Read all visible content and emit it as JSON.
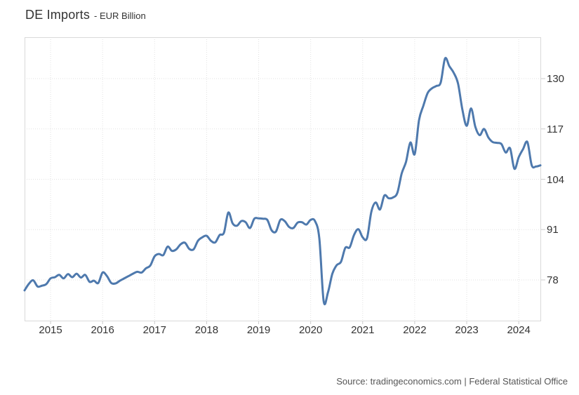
{
  "header": {
    "title": "DE Imports",
    "subtitle": "- EUR Billion"
  },
  "footer": {
    "source": "Source: tradingeconomics.com | Federal Statistical Office"
  },
  "chart_data": {
    "type": "line",
    "title": "DE Imports",
    "unit": "EUR Billion",
    "frequency": "monthly",
    "start": "2014-07",
    "end": "2024-06",
    "values": [
      75.3,
      77.0,
      77.9,
      76.3,
      76.5,
      76.9,
      78.4,
      78.7,
      79.3,
      78.4,
      79.5,
      78.7,
      79.6,
      78.6,
      79.3,
      77.5,
      77.8,
      77.2,
      79.9,
      79.0,
      77.2,
      77.1,
      77.8,
      78.4,
      79.0,
      79.6,
      80.1,
      79.9,
      81.0,
      81.7,
      84.1,
      84.7,
      84.4,
      86.6,
      85.5,
      85.9,
      87.2,
      87.6,
      86.0,
      85.9,
      88.1,
      89.0,
      89.4,
      88.1,
      87.7,
      89.6,
      90.2,
      95.4,
      92.6,
      92.0,
      93.2,
      92.9,
      91.4,
      93.8,
      93.9,
      93.8,
      93.5,
      90.8,
      90.5,
      93.5,
      93.2,
      91.7,
      91.4,
      92.8,
      92.9,
      92.3,
      93.5,
      93.2,
      88.7,
      72.5,
      74.8,
      79.6,
      81.8,
      82.7,
      86.3,
      86.4,
      89.6,
      91.1,
      89.0,
      88.8,
      95.6,
      98.0,
      96.2,
      99.8,
      99.1,
      99.3,
      100.5,
      105.5,
      108.5,
      113.5,
      110.5,
      119.3,
      123.0,
      126.3,
      127.5,
      128.1,
      129.0,
      135.2,
      133.2,
      131.5,
      128.7,
      122.0,
      117.8,
      122.3,
      117.5,
      115.4,
      117.0,
      114.8,
      113.6,
      113.4,
      113.1,
      110.9,
      112.0,
      106.7,
      109.7,
      111.8,
      113.6,
      107.6,
      107.3,
      107.6
    ],
    "x_ticks": [
      2015,
      2016,
      2017,
      2018,
      2019,
      2020,
      2021,
      2022,
      2023,
      2024
    ],
    "y_ticks": [
      78,
      91,
      104,
      117,
      130
    ],
    "ylim": [
      67.3,
      140.7
    ],
    "xlim_yearfrac": [
      2014.5,
      2024.43
    ],
    "grid": true,
    "legend": "none",
    "line_color": "#4e79ad",
    "grid_color": "#e2e2e2",
    "border_color": "#d9d9d9",
    "tick_color": "#cccccc"
  }
}
